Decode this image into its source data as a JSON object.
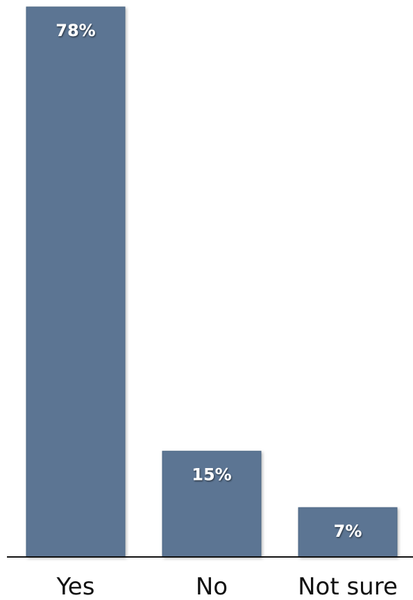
{
  "chart_data": {
    "type": "bar",
    "categories": [
      "Yes",
      "No",
      "Not sure"
    ],
    "values": [
      78,
      15,
      7
    ],
    "data_labels": [
      "78%",
      "15%",
      "7%"
    ],
    "ylim": [
      0,
      78
    ],
    "grid": false,
    "legend": "none",
    "title": "",
    "xlabel": "",
    "ylabel": ""
  },
  "colors": {
    "bar": "#5b7593",
    "bar_edge": "#4d6784",
    "label": "#ffffff",
    "axis": "#111111",
    "category_text": "#111111"
  }
}
